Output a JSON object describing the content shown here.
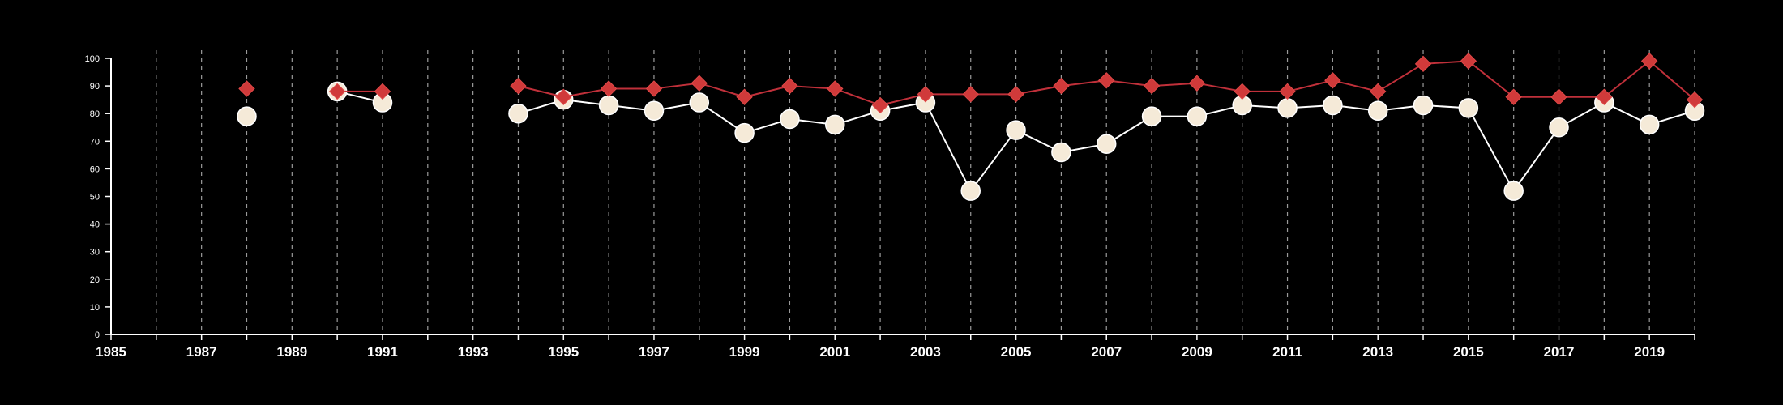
{
  "chart_data": {
    "type": "line",
    "title": "",
    "xlabel": "",
    "ylabel": "",
    "xlim": [
      1985,
      2020
    ],
    "ylim": [
      0,
      100
    ],
    "x_ticks": [
      1985,
      1987,
      1989,
      1991,
      1993,
      1995,
      1997,
      1999,
      2001,
      2003,
      2005,
      2007,
      2009,
      2011,
      2013,
      2015,
      2017,
      2019
    ],
    "y_ticks": [
      0,
      10,
      20,
      30,
      40,
      50,
      60,
      70,
      80,
      90,
      100
    ],
    "vertical_grid": true,
    "grid_style": "dashed",
    "series": [
      {
        "marker": "circle",
        "color": "#f5ead8",
        "line_color": "#ffffff",
        "points": [
          [
            1988,
            79
          ],
          [
            1990,
            88
          ],
          [
            1991,
            84
          ],
          [
            1994,
            80
          ],
          [
            1995,
            85
          ],
          [
            1996,
            83
          ],
          [
            1997,
            81
          ],
          [
            1998,
            84
          ],
          [
            1999,
            73
          ],
          [
            2000,
            78
          ],
          [
            2001,
            76
          ],
          [
            2002,
            81
          ],
          [
            2003,
            84
          ],
          [
            2004,
            52
          ],
          [
            2005,
            74
          ],
          [
            2006,
            66
          ],
          [
            2007,
            69
          ],
          [
            2008,
            79
          ],
          [
            2009,
            79
          ],
          [
            2010,
            83
          ],
          [
            2011,
            82
          ],
          [
            2012,
            83
          ],
          [
            2013,
            81
          ],
          [
            2014,
            83
          ],
          [
            2015,
            82
          ],
          [
            2016,
            52
          ],
          [
            2017,
            75
          ],
          [
            2018,
            84
          ],
          [
            2019,
            76
          ],
          [
            2020,
            81
          ]
        ]
      },
      {
        "marker": "diamond",
        "color": "#d03a3a",
        "line_color": "#c0303a",
        "points": [
          [
            1988,
            89
          ],
          [
            1990,
            88
          ],
          [
            1991,
            88
          ],
          [
            1994,
            90
          ],
          [
            1995,
            86
          ],
          [
            1996,
            89
          ],
          [
            1997,
            89
          ],
          [
            1998,
            91
          ],
          [
            1999,
            86
          ],
          [
            2000,
            90
          ],
          [
            2001,
            89
          ],
          [
            2002,
            83
          ],
          [
            2003,
            87
          ],
          [
            2004,
            87
          ],
          [
            2005,
            87
          ],
          [
            2006,
            90
          ],
          [
            2007,
            92
          ],
          [
            2008,
            90
          ],
          [
            2009,
            91
          ],
          [
            2010,
            88
          ],
          [
            2011,
            88
          ],
          [
            2012,
            92
          ],
          [
            2013,
            88
          ],
          [
            2014,
            98
          ],
          [
            2015,
            99
          ],
          [
            2016,
            86
          ],
          [
            2017,
            86
          ],
          [
            2018,
            86
          ],
          [
            2019,
            99
          ],
          [
            2020,
            85
          ]
        ]
      }
    ]
  }
}
